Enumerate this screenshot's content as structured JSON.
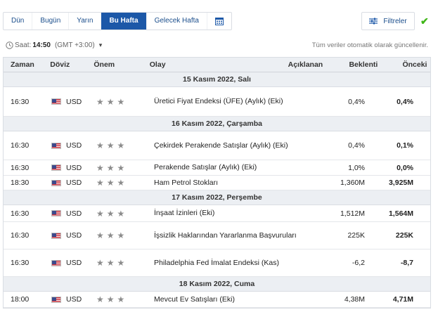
{
  "tabs": [
    "Dün",
    "Bugün",
    "Yarın",
    "Bu Hafta",
    "Gelecek Hafta"
  ],
  "active_tab_index": 3,
  "calendar_icon": "calendar-icon",
  "filter_label": "Filtreler",
  "time_prefix": "Saat:",
  "time_value": "14:50",
  "timezone": "(GMT +3:00)",
  "auto_update_note": "Tüm veriler otomatik olarak güncellenir.",
  "headers": {
    "time": "Zaman",
    "currency": "Döviz",
    "importance": "Önem",
    "event": "Olay",
    "actual": "Açıklanan",
    "forecast": "Beklenti",
    "previous": "Önceki"
  },
  "days": [
    {
      "label": "15 Kasım 2022, Salı",
      "events": [
        {
          "time": "16:30",
          "currency": "USD",
          "stars": 3,
          "event": "Üretici Fiyat Endeksi (ÜFE) (Aylık) (Eki)",
          "actual": "",
          "forecast": "0,4%",
          "previous": "0,4%"
        }
      ]
    },
    {
      "label": "16 Kasım 2022, Çarşamba",
      "events": [
        {
          "time": "16:30",
          "currency": "USD",
          "stars": 3,
          "event": "Çekirdek Perakende Satışlar (Aylık) (Eki)",
          "actual": "",
          "forecast": "0,4%",
          "previous": "0,1%"
        },
        {
          "time": "16:30",
          "currency": "USD",
          "stars": 3,
          "event": "Perakende Satışlar (Aylık) (Eki)",
          "actual": "",
          "forecast": "1,0%",
          "previous": "0,0%"
        },
        {
          "time": "18:30",
          "currency": "USD",
          "stars": 3,
          "event": "Ham Petrol Stokları",
          "actual": "",
          "forecast": "1,360M",
          "previous": "3,925M"
        }
      ]
    },
    {
      "label": "17 Kasım 2022, Perşembe",
      "events": [
        {
          "time": "16:30",
          "currency": "USD",
          "stars": 3,
          "event": "İnşaat İzinleri (Eki)",
          "actual": "",
          "forecast": "1,512M",
          "previous": "1,564M"
        },
        {
          "time": "16:30",
          "currency": "USD",
          "stars": 3,
          "event": "İşsizlik Haklarından Yararlanma Başvuruları",
          "actual": "",
          "forecast": "225K",
          "previous": "225K"
        },
        {
          "time": "16:30",
          "currency": "USD",
          "stars": 3,
          "event": "Philadelphia Fed İmalat Endeksi (Kas)",
          "actual": "",
          "forecast": "-6,2",
          "previous": "-8,7"
        }
      ]
    },
    {
      "label": "18 Kasım 2022, Cuma",
      "events": [
        {
          "time": "18:00",
          "currency": "USD",
          "stars": 3,
          "event": "Mevcut Ev Satışları (Eki)",
          "actual": "",
          "forecast": "4,38M",
          "previous": "4,71M"
        }
      ]
    }
  ]
}
